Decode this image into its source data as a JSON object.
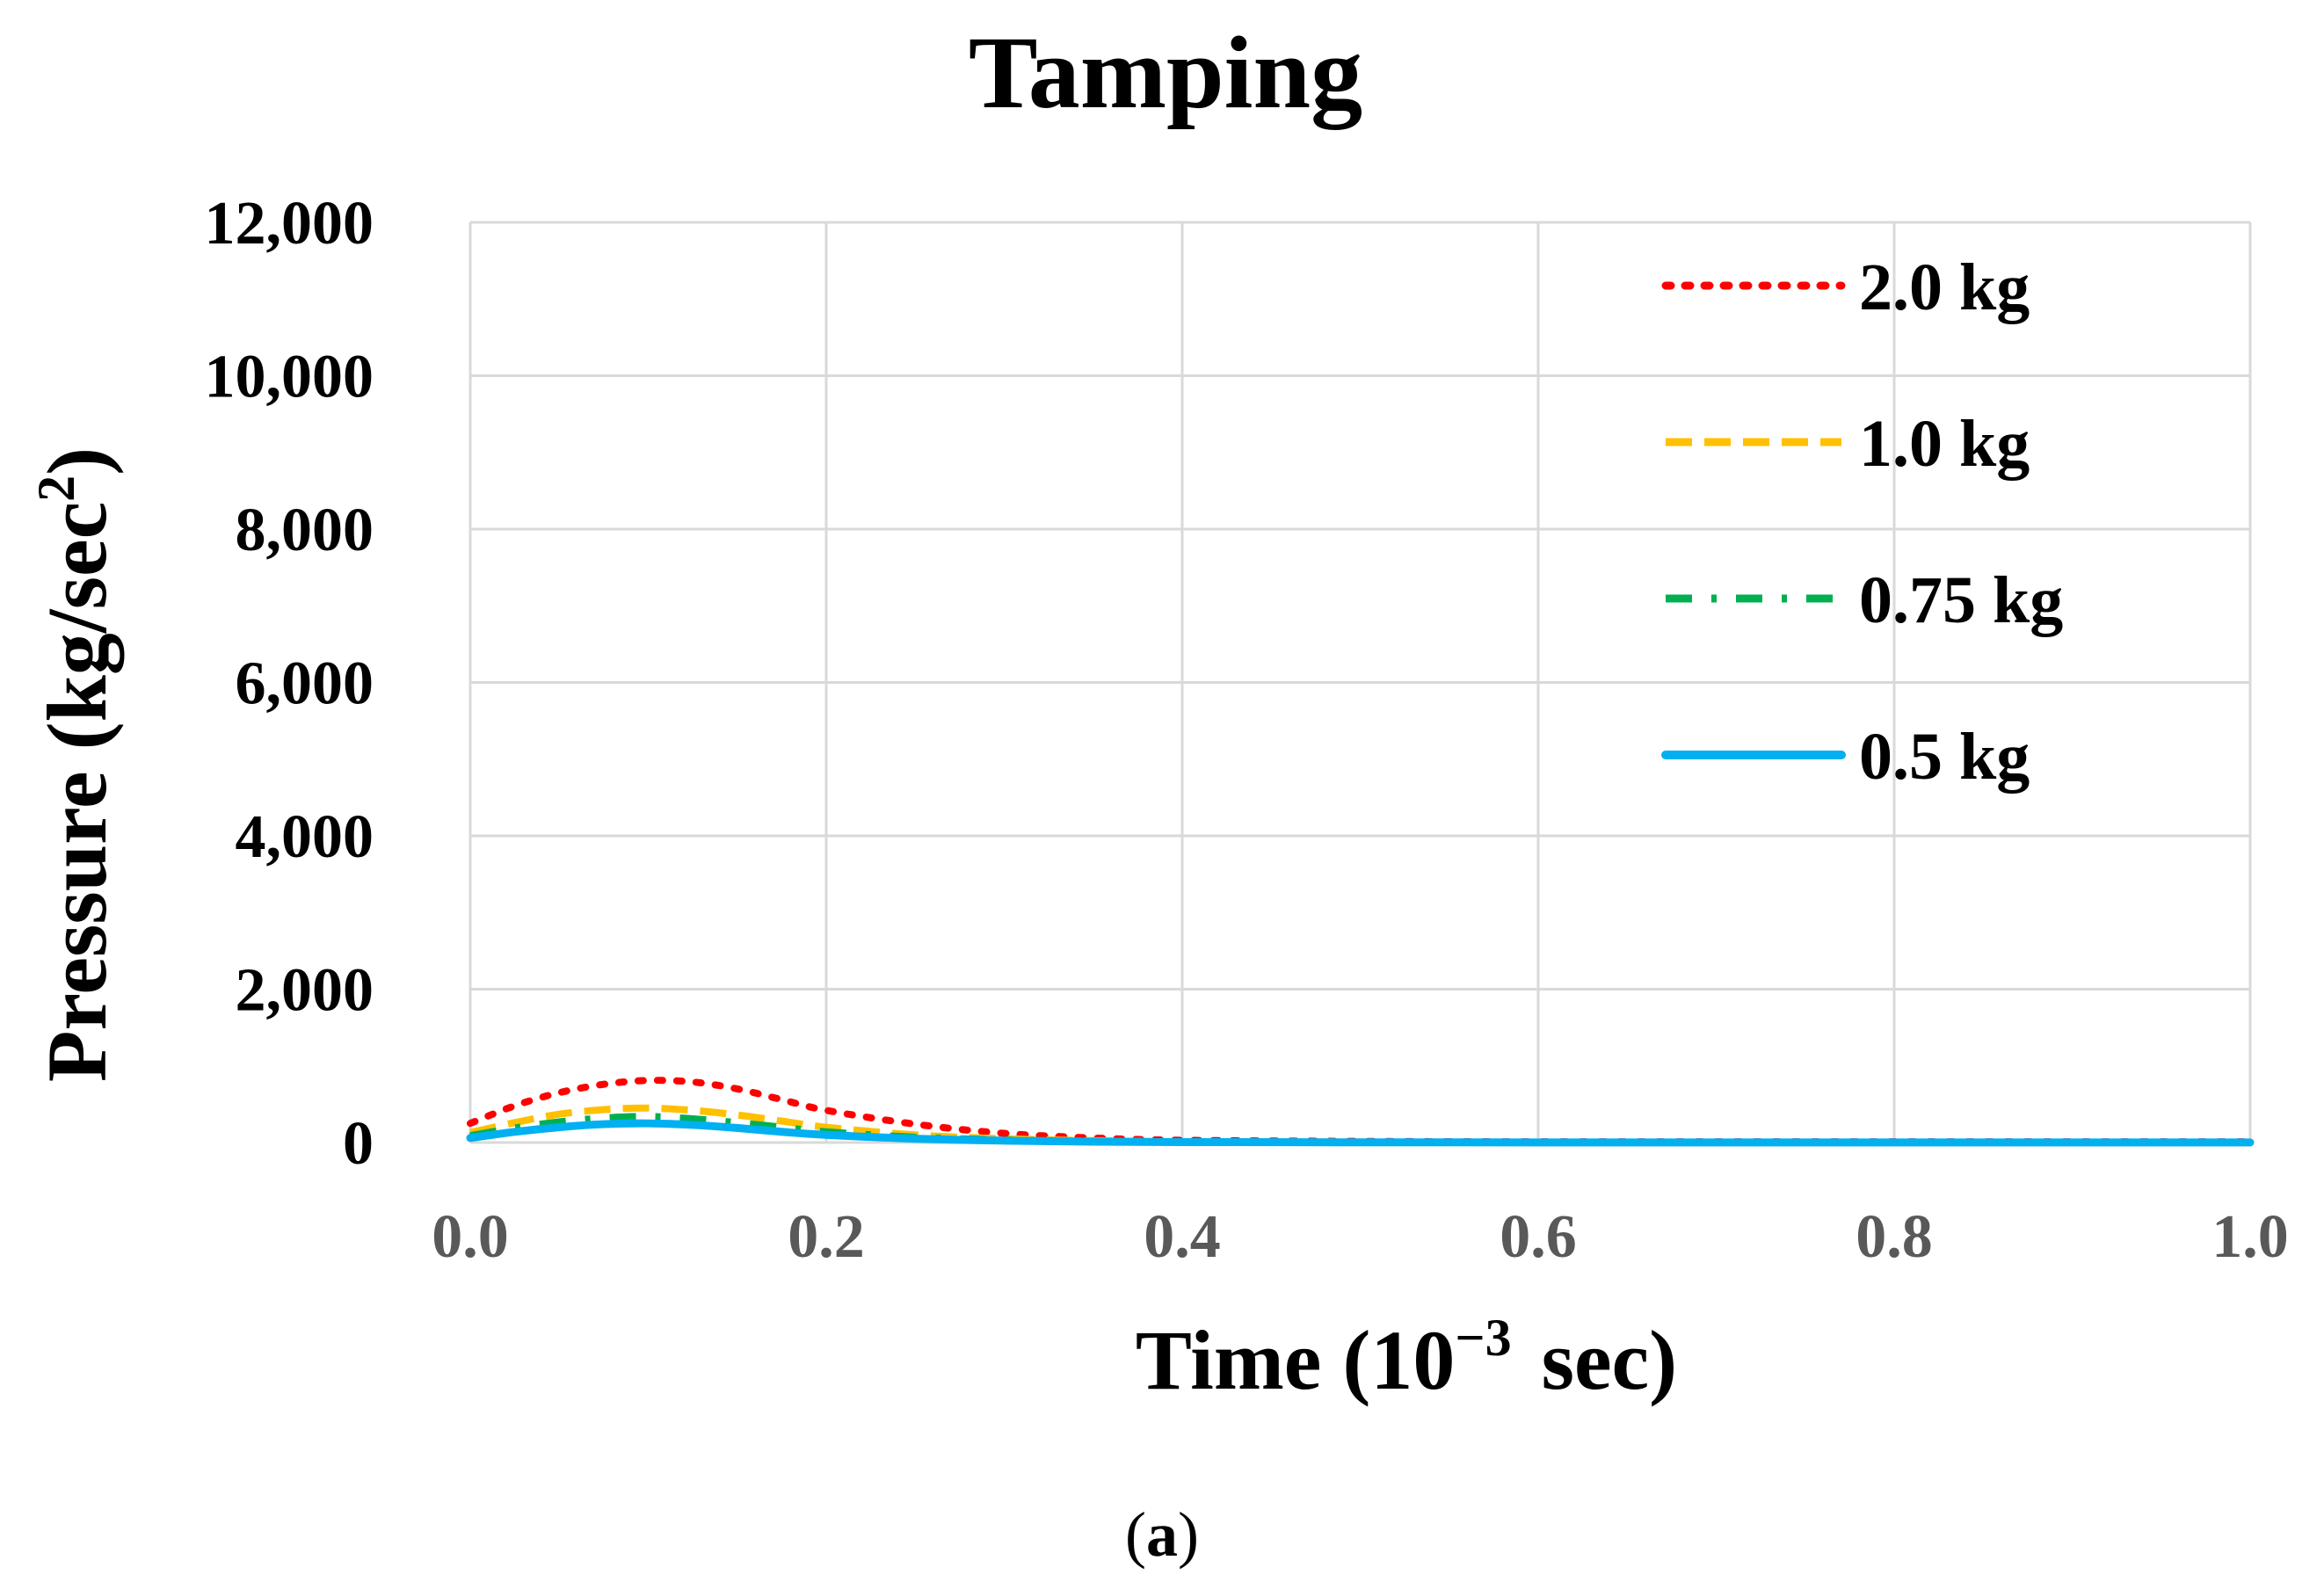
{
  "chart_data": {
    "type": "line",
    "title": "Tamping",
    "xlabel": "Time",
    "xlabel_unit_pre": "(10",
    "xlabel_unit_exp": "−3",
    "xlabel_unit_post": "sec)",
    "ylabel": "Pressure (kg/sec",
    "ylabel_exp": "2",
    "ylabel_post": ")",
    "xlim": [
      0,
      1.0
    ],
    "ylim": [
      0,
      12000
    ],
    "x_ticks": [
      "0.0",
      "0.2",
      "0.4",
      "0.6",
      "0.8",
      "1.0"
    ],
    "x_tick_values": [
      0,
      0.2,
      0.4,
      0.6,
      0.8,
      1.0
    ],
    "y_ticks": [
      "0",
      "2,000",
      "4,000",
      "6,000",
      "8,000",
      "10,000",
      "12,000"
    ],
    "y_tick_values": [
      0,
      2000,
      4000,
      6000,
      8000,
      10000,
      12000
    ],
    "grid": true,
    "legend_position": "top-right",
    "x": [
      0,
      0.025,
      0.05,
      0.075,
      0.1,
      0.125,
      0.15,
      0.175,
      0.2,
      0.25,
      0.3,
      0.35,
      0.4,
      0.5,
      0.6,
      0.7,
      0.8,
      0.9,
      1.0
    ],
    "series": [
      {
        "name": "2.0 kg",
        "color": "#ff0000",
        "dash": "dotted",
        "values": [
          250,
          480,
          650,
          760,
          810,
          790,
          700,
          560,
          420,
          240,
          120,
          60,
          30,
          15,
          10,
          10,
          10,
          10,
          10
        ]
      },
      {
        "name": "1.0 kg",
        "color": "#ffc000",
        "dash": "dashed",
        "values": [
          130,
          260,
          370,
          430,
          450,
          420,
          360,
          280,
          200,
          100,
          50,
          25,
          12,
          6,
          5,
          5,
          5,
          5,
          5
        ]
      },
      {
        "name": "0.75 kg",
        "color": "#00b050",
        "dash": "dashdot",
        "values": [
          90,
          190,
          270,
          320,
          340,
          310,
          260,
          200,
          140,
          70,
          35,
          18,
          9,
          5,
          4,
          4,
          4,
          4,
          4
        ]
      },
      {
        "name": "0.5 kg",
        "color": "#00b0f0",
        "dash": "solid",
        "values": [
          60,
          140,
          200,
          240,
          250,
          230,
          190,
          140,
          100,
          50,
          25,
          12,
          6,
          3,
          2,
          2,
          2,
          2,
          2
        ]
      }
    ]
  },
  "caption": {
    "open": "(",
    "letter": "a",
    "close": ")"
  }
}
